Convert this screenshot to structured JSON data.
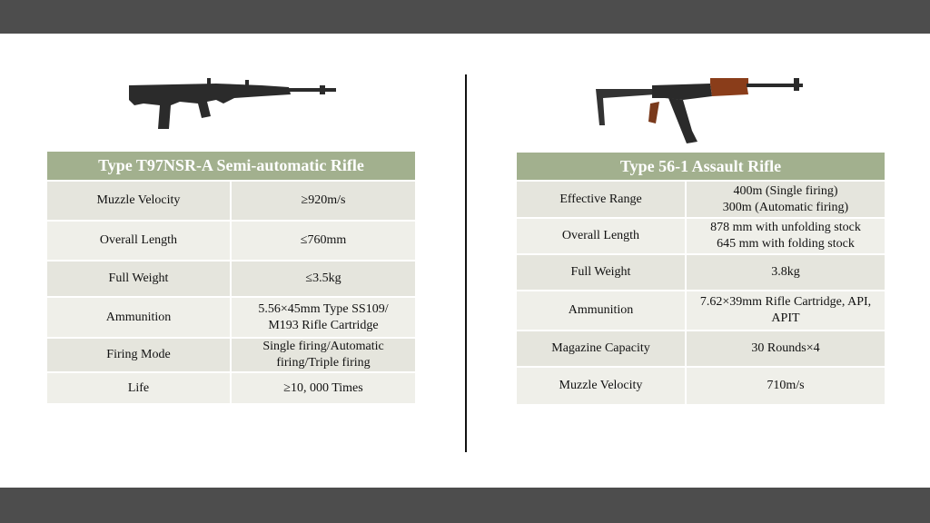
{
  "left": {
    "title": "Type T97NSR-A Semi-automatic Rifle",
    "rows": [
      {
        "label": "Muzzle Velocity",
        "value": "≥920m/s"
      },
      {
        "label": "Overall Length",
        "value": "≤760mm"
      },
      {
        "label": "Full Weight",
        "value": "≤3.5kg"
      },
      {
        "label": "Ammunition",
        "value": "5.56×45mm Type SS109/\nM193 Rifle Cartridge"
      },
      {
        "label": "Firing Mode",
        "value": "Single firing/Automatic\nfiring/Triple firing"
      },
      {
        "label": "Life",
        "value": "≥10, 000 Times"
      }
    ]
  },
  "right": {
    "title": "Type 56-1 Assault Rifle",
    "rows": [
      {
        "label": "Effective Range",
        "value": "400m (Single firing)\n300m (Automatic firing)"
      },
      {
        "label": "Overall Length",
        "value": "878 mm with unfolding stock\n645 mm with folding stock"
      },
      {
        "label": "Full Weight",
        "value": "3.8kg"
      },
      {
        "label": "Ammunition",
        "value": "7.62×39mm Rifle Cartridge, API,\nAPIT"
      },
      {
        "label": "Magazine Capacity",
        "value": "30 Rounds×4"
      },
      {
        "label": "Muzzle Velocity",
        "value": "710m/s"
      }
    ]
  },
  "colors": {
    "header": "#a2b08e",
    "bars": "#4d4d4d"
  }
}
